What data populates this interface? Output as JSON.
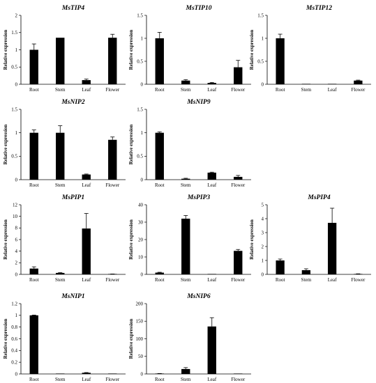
{
  "chart_data": [
    {
      "type": "bar",
      "title": "MsTIP4",
      "ylabel": "Relative expression",
      "categories": [
        "Root",
        "Stem",
        "Leaf",
        "Flower"
      ],
      "values": [
        1.0,
        1.35,
        0.12,
        1.35
      ],
      "errors": [
        0.17,
        0.0,
        0.03,
        0.1
      ],
      "ylim": [
        0,
        2
      ],
      "yticks": [
        0,
        0.5,
        1,
        1.5,
        2
      ],
      "ytick_labels": [
        "0",
        "0.5",
        "1",
        "1.5",
        "2"
      ]
    },
    {
      "type": "bar",
      "title": "MsTIP10",
      "ylabel": "Relative expression",
      "categories": [
        "Root",
        "Stem",
        "Leaf",
        "Flower"
      ],
      "values": [
        1.0,
        0.08,
        0.03,
        0.37
      ],
      "errors": [
        0.13,
        0.02,
        0.01,
        0.15
      ],
      "ylim": [
        0,
        1.5
      ],
      "yticks": [
        0,
        0.5,
        1,
        1.5
      ],
      "ytick_labels": [
        "0",
        "0.5",
        "1",
        "1.5"
      ]
    },
    {
      "type": "bar",
      "title": "MsTIP12",
      "ylabel": "Relative expression",
      "categories": [
        "Root",
        "Stem",
        "Leaf",
        "Flower"
      ],
      "values": [
        1.0,
        0.005,
        0.005,
        0.08
      ],
      "errors": [
        0.09,
        0.0,
        0.0,
        0.01
      ],
      "ylim": [
        0,
        1.5
      ],
      "yticks": [
        0,
        0.5,
        1,
        1.5
      ],
      "ytick_labels": [
        "0",
        "0.5",
        "1",
        "1.5"
      ]
    },
    {
      "type": "bar",
      "title": "MsNIP2",
      "ylabel": "Relative expression",
      "categories": [
        "Root",
        "Stem",
        "Leaf",
        "Flower"
      ],
      "values": [
        1.0,
        1.0,
        0.11,
        0.85
      ],
      "errors": [
        0.06,
        0.15,
        0.01,
        0.06
      ],
      "ylim": [
        0,
        1.5
      ],
      "yticks": [
        0,
        0.5,
        1,
        1.5
      ],
      "ytick_labels": [
        "0",
        "0.5",
        "1",
        "1.5"
      ]
    },
    {
      "type": "bar",
      "title": "MsNIP9",
      "ylabel": "Relative expression",
      "categories": [
        "Root",
        "Stem",
        "Leaf",
        "Flower"
      ],
      "values": [
        1.0,
        0.02,
        0.15,
        0.06
      ],
      "errors": [
        0.02,
        0.01,
        0.01,
        0.03
      ],
      "ylim": [
        0,
        1.5
      ],
      "yticks": [
        0,
        0.5,
        1,
        1.5
      ],
      "ytick_labels": [
        "0",
        "0.5",
        "1",
        "1.5"
      ]
    },
    {
      "type": "bar",
      "title": "MsPIP1",
      "ylabel": "Relative expression",
      "categories": [
        "Root",
        "Stem",
        "Leaf",
        "Flower"
      ],
      "values": [
        1.0,
        0.25,
        7.9,
        0.05
      ],
      "errors": [
        0.3,
        0.05,
        2.6,
        0.02
      ],
      "ylim": [
        0,
        12
      ],
      "yticks": [
        0,
        2,
        4,
        6,
        8,
        10,
        12
      ],
      "ytick_labels": [
        "0",
        "2",
        "4",
        "6",
        "8",
        "10",
        "12"
      ]
    },
    {
      "type": "bar",
      "title": "MsPIP3",
      "ylabel": "Relative expression",
      "categories": [
        "Root",
        "Stem",
        "Leaf",
        "Flower"
      ],
      "values": [
        1.0,
        32.0,
        0.05,
        13.5
      ],
      "errors": [
        0.2,
        1.8,
        0.0,
        0.8
      ],
      "ylim": [
        0,
        40
      ],
      "yticks": [
        0,
        10,
        20,
        30,
        40
      ],
      "ytick_labels": [
        "0",
        "10",
        "20",
        "30",
        "40"
      ]
    },
    {
      "type": "bar",
      "title": "MsPIP4",
      "ylabel": "Relative expression",
      "categories": [
        "Root",
        "Stem",
        "Leaf",
        "Flower"
      ],
      "values": [
        1.0,
        0.3,
        3.7,
        0.03
      ],
      "errors": [
        0.1,
        0.1,
        1.05,
        0.01
      ],
      "ylim": [
        0,
        5
      ],
      "yticks": [
        0,
        1,
        2,
        3,
        4,
        5
      ],
      "ytick_labels": [
        "0",
        "1",
        "2",
        "3",
        "4",
        "5"
      ]
    },
    {
      "type": "bar",
      "title": "MsNIP1",
      "ylabel": "Relative expression",
      "categories": [
        "Root",
        "Stem",
        "Leaf",
        "Flower"
      ],
      "values": [
        1.0,
        0.005,
        0.02,
        0.003
      ],
      "errors": [
        0.005,
        0.0,
        0.004,
        0.0
      ],
      "ylim": [
        0,
        1.2
      ],
      "yticks": [
        0,
        0.2,
        0.4,
        0.6,
        0.8,
        1,
        1.2
      ],
      "ytick_labels": [
        "0",
        "0.2",
        "0.4",
        "0.6",
        "0.8",
        "1",
        "1.2"
      ]
    },
    {
      "type": "bar",
      "title": "MsNIP6",
      "ylabel": "Relative expression",
      "categories": [
        "Root",
        "Stem",
        "Leaf",
        "Flower"
      ],
      "values": [
        1.0,
        14.0,
        135.0,
        0.3
      ],
      "errors": [
        0.3,
        4.0,
        25.0,
        0.0
      ],
      "ylim": [
        0,
        200
      ],
      "yticks": [
        0,
        50,
        100,
        150,
        200
      ],
      "ytick_labels": [
        "0",
        "50",
        "100",
        "150",
        "200"
      ]
    }
  ]
}
